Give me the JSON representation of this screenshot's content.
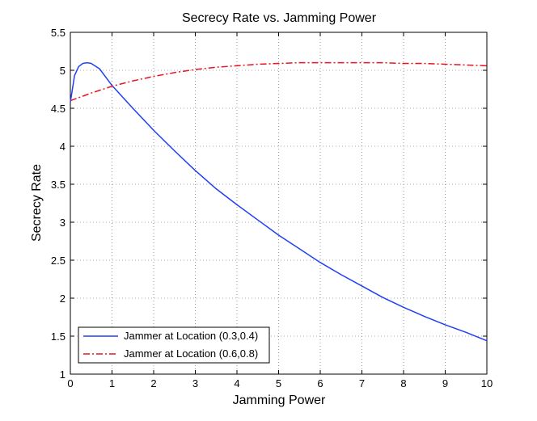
{
  "chart_data": {
    "type": "line",
    "title": "Secrecy Rate vs. Jamming Power",
    "xlabel": "Jamming Power",
    "ylabel": "Secrecy Rate",
    "xlim": [
      0,
      10
    ],
    "ylim": [
      1,
      5.5
    ],
    "x_ticks": [
      0,
      1,
      2,
      3,
      4,
      5,
      6,
      7,
      8,
      9,
      10
    ],
    "y_ticks": [
      1,
      1.5,
      2,
      2.5,
      3,
      3.5,
      4,
      4.5,
      5,
      5.5
    ],
    "grid": true,
    "legend_position": "bottom-left",
    "series": [
      {
        "name": "Jammer at Location (0.3,0.4)",
        "color": "#1f3ff5",
        "style": "solid",
        "x": [
          0,
          0.1,
          0.2,
          0.3,
          0.4,
          0.5,
          0.7,
          1,
          1.5,
          2,
          2.5,
          3,
          3.5,
          4,
          4.5,
          5,
          5.5,
          6,
          6.5,
          7,
          7.5,
          8,
          8.5,
          9,
          9.5,
          10
        ],
        "y": [
          4.58,
          4.93,
          5.05,
          5.09,
          5.1,
          5.09,
          5.02,
          4.8,
          4.5,
          4.21,
          3.94,
          3.68,
          3.44,
          3.23,
          3.03,
          2.83,
          2.65,
          2.47,
          2.31,
          2.16,
          2.01,
          1.88,
          1.76,
          1.65,
          1.55,
          1.44
        ]
      },
      {
        "name": "Jammer at Location (0.6,0.8)",
        "color": "#e8141e",
        "style": "dash-dot",
        "x": [
          0,
          0.5,
          1,
          1.5,
          2,
          2.5,
          3,
          3.5,
          4,
          4.5,
          5,
          5.5,
          6,
          6.5,
          7,
          7.5,
          8,
          8.5,
          9,
          9.5,
          10
        ],
        "y": [
          4.6,
          4.7,
          4.79,
          4.86,
          4.92,
          4.97,
          5.01,
          5.04,
          5.06,
          5.08,
          5.09,
          5.1,
          5.1,
          5.1,
          5.1,
          5.1,
          5.09,
          5.09,
          5.08,
          5.07,
          5.06
        ]
      }
    ]
  }
}
